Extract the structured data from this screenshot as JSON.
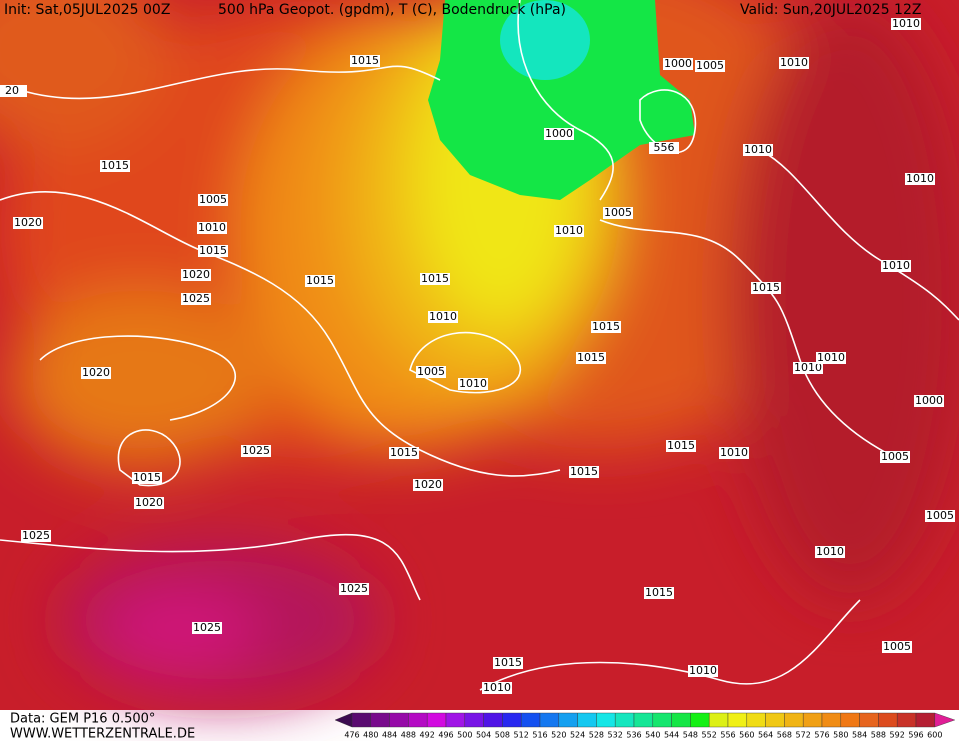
{
  "header": {
    "init": "Init: Sat,05JUL2025 00Z",
    "title": "500 hPa Geopot. (gpdm), T (C), Bodendruck (hPa)",
    "valid": "Valid: Sun,20JUL2025 12Z"
  },
  "isobar_labels": [
    "1015",
    "1015",
    "1005",
    "1010",
    "1015",
    "1020",
    "1020",
    "1025",
    "1015",
    "1015",
    "1010",
    "1005",
    "1010",
    "1020",
    "1015",
    "1020",
    "1025",
    "1015",
    "1020",
    "1025",
    "1025",
    "1025",
    "1015",
    "1010",
    "1010",
    "1015",
    "1010",
    "1005",
    "1005",
    "1005",
    "1000",
    "1010",
    "1015",
    "1015",
    "1010",
    "1010",
    "1015",
    "1015",
    "1015",
    "1010",
    "1010",
    "1010",
    "1010",
    "1005",
    "1000",
    "1010",
    "1000",
    "556",
    "1005",
    "1010",
    "20"
  ],
  "colorbar": {
    "labels": [
      476,
      480,
      484,
      488,
      492,
      496,
      500,
      504,
      508,
      512,
      516,
      520,
      524,
      528,
      532,
      536,
      540,
      544,
      548,
      552,
      556,
      560,
      564,
      568,
      572,
      576,
      580,
      584,
      588,
      592,
      596,
      600
    ],
    "colors": [
      "#3c0a50",
      "#5a0a70",
      "#780a8c",
      "#960aa8",
      "#b40ac4",
      "#d20ae0",
      "#a014e6",
      "#7814e6",
      "#5014e6",
      "#2828f0",
      "#1450f0",
      "#1478f0",
      "#14a0f0",
      "#14c8f0",
      "#14e6e6",
      "#14e6be",
      "#14e696",
      "#14e66e",
      "#14e646",
      "#14f014",
      "#dcf014",
      "#f0f014",
      "#f0dc14",
      "#f0c814",
      "#f0b414",
      "#f0a014",
      "#f08c14",
      "#f07814",
      "#e6641e",
      "#dc4b1e",
      "#c83228",
      "#b41e32",
      "#e01e96"
    ]
  },
  "footer": {
    "source": "Data: GEM P16 0.500°",
    "site": "WWW.WETTERZENTRALE.DE"
  }
}
